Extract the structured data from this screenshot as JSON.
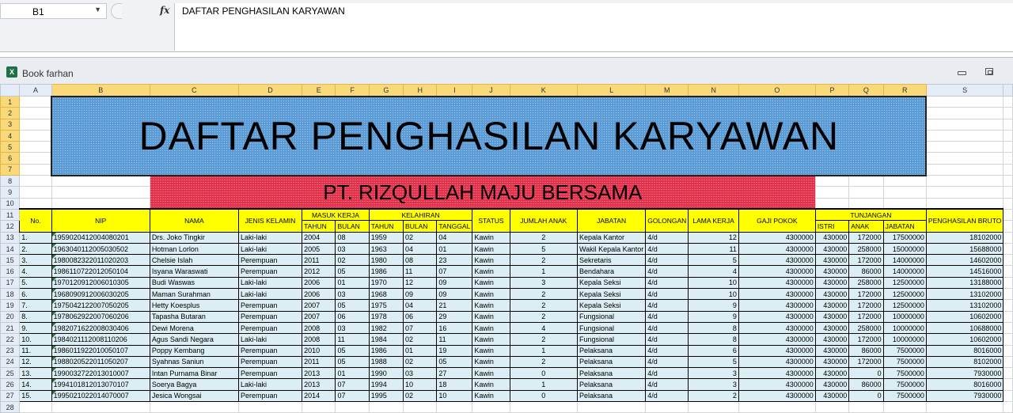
{
  "formula_bar": {
    "name_box": "B1",
    "fx_label": "fx",
    "formula": "DAFTAR PENGHASILAN KARYAWAN"
  },
  "workbook": {
    "title": "Book farhan",
    "icon": "excel-icon"
  },
  "columns": [
    "A",
    "B",
    "C",
    "D",
    "E",
    "F",
    "G",
    "H",
    "I",
    "J",
    "K",
    "L",
    "M",
    "N",
    "O",
    "P",
    "Q",
    "R",
    "S"
  ],
  "row_numbers": [
    "1",
    "2",
    "3",
    "4",
    "5",
    "6",
    "7",
    "8",
    "9",
    "10",
    "11",
    "12",
    "13",
    "14",
    "15",
    "16",
    "17",
    "18",
    "19",
    "20",
    "21",
    "22",
    "23",
    "24",
    "25",
    "26",
    "27",
    "28"
  ],
  "sheet": {
    "title": "DAFTAR PENGHASILAN KARYAWAN",
    "subtitle": "PT. RIZQULLAH MAJU BERSAMA",
    "headers": {
      "no": "No.",
      "nip": "NIP",
      "nama": "NAMA",
      "jenis_kelamin": "JENIS KELAMIN",
      "masuk_kerja": "MASUK KERJA",
      "mk_tahun": "TAHUN",
      "mk_bulan": "BULAN",
      "kelahiran": "KELAHIRAN",
      "kl_tahun": "TAHUN",
      "kl_bulan": "BULAN",
      "kl_tanggal": "TANGGAL",
      "status": "STATUS",
      "jumlah_anak": "JUMLAH ANAK",
      "jabatan": "JABATAN",
      "golongan": "GOLONGAN",
      "lama_kerja": "LAMA KERJA",
      "gaji_pokok": "GAJI POKOK",
      "tunjangan": "TUNJANGAN",
      "istri": "ISTRI",
      "anak": "ANAK",
      "tj_jabatan": "JABATAN",
      "bruto": "PENGHASILAN BRUTO"
    },
    "rows": [
      [
        "1.",
        "1959020412004080201",
        "Drs. Joko Tingkir",
        "Laki-laki",
        "2004",
        "08",
        "1959",
        "02",
        "04",
        "Kawin",
        "2",
        "Kepala Kantor",
        "4/d",
        "12",
        "4300000",
        "430000",
        "172000",
        "17500000",
        "18102000"
      ],
      [
        "2.",
        "1963040112005030502",
        "Hotman Lorlon",
        "Laki-laki",
        "2005",
        "03",
        "1963",
        "04",
        "01",
        "Kawin",
        "5",
        "Wakil Kepala Kantor",
        "4/d",
        "11",
        "4300000",
        "430000",
        "258000",
        "15000000",
        "15688000"
      ],
      [
        "3.",
        "1980082322011020203",
        "Chelsie Islah",
        "Perempuan",
        "2011",
        "02",
        "1980",
        "08",
        "23",
        "Kawin",
        "2",
        "Sekretaris",
        "4/d",
        "5",
        "4300000",
        "430000",
        "172000",
        "14000000",
        "14602000"
      ],
      [
        "4.",
        "1986110722012050104",
        "Isyana Waraswati",
        "Perempuan",
        "2012",
        "05",
        "1986",
        "11",
        "07",
        "Kawin",
        "1",
        "Bendahara",
        "4/d",
        "4",
        "4300000",
        "430000",
        "86000",
        "14000000",
        "14516000"
      ],
      [
        "5.",
        "1970120912006010305",
        "Budi Waswas",
        "Laki-laki",
        "2006",
        "01",
        "1970",
        "12",
        "09",
        "Kawin",
        "3",
        "Kepala Seksi",
        "4/d",
        "10",
        "4300000",
        "430000",
        "258000",
        "12500000",
        "13188000"
      ],
      [
        "6.",
        "1968090912006030205",
        "Maman Surahman",
        "Laki-laki",
        "2006",
        "03",
        "1968",
        "09",
        "09",
        "Kawin",
        "2",
        "Kepala Seksi",
        "4/d",
        "10",
        "4300000",
        "430000",
        "172000",
        "12500000",
        "13102000"
      ],
      [
        "7.",
        "1975042122007050205",
        "Hetty Koesplus",
        "Perempuan",
        "2007",
        "05",
        "1975",
        "04",
        "21",
        "Kawin",
        "2",
        "Kepala Seksi",
        "4/d",
        "9",
        "4300000",
        "430000",
        "172000",
        "12500000",
        "13102000"
      ],
      [
        "8.",
        "1978062922007060206",
        "Tapasha Butaran",
        "Perempuan",
        "2007",
        "06",
        "1978",
        "06",
        "29",
        "Kawin",
        "2",
        "Fungsional",
        "4/d",
        "9",
        "4300000",
        "430000",
        "172000",
        "10000000",
        "10602000"
      ],
      [
        "9.",
        "1982071622008030406",
        "Dewi Morena",
        "Perempuan",
        "2008",
        "03",
        "1982",
        "07",
        "16",
        "Kawin",
        "4",
        "Fungsional",
        "4/d",
        "8",
        "4300000",
        "430000",
        "258000",
        "10000000",
        "10688000"
      ],
      [
        "10.",
        "1984021112008110206",
        "Agus Sandi Negara",
        "Laki-laki",
        "2008",
        "11",
        "1984",
        "02",
        "11",
        "Kawin",
        "2",
        "Fungsional",
        "4/d",
        "8",
        "4300000",
        "430000",
        "172000",
        "10000000",
        "10602000"
      ],
      [
        "11.",
        "1986011922010050107",
        "Poppy Kembang",
        "Perempuan",
        "2010",
        "05",
        "1986",
        "01",
        "19",
        "Kawin",
        "1",
        "Pelaksana",
        "4/d",
        "6",
        "4300000",
        "430000",
        "86000",
        "7500000",
        "8016000"
      ],
      [
        "12.",
        "1988020522011050207",
        "Syahnas Saniun",
        "Perempuan",
        "2011",
        "05",
        "1988",
        "02",
        "05",
        "Kawin",
        "2",
        "Pelaksana",
        "4/d",
        "5",
        "4300000",
        "430000",
        "172000",
        "7500000",
        "8102000"
      ],
      [
        "13.",
        "1990032722013010007",
        "Intan Purnama Binar",
        "Perempuan",
        "2013",
        "01",
        "1990",
        "03",
        "27",
        "Kawin",
        "0",
        "Pelaksana",
        "4/d",
        "3",
        "4300000",
        "430000",
        "0",
        "7500000",
        "7930000"
      ],
      [
        "14.",
        "1994101812013070107",
        "Soerya Bagya",
        "Laki-laki",
        "2013",
        "07",
        "1994",
        "10",
        "18",
        "Kawin",
        "1",
        "Pelaksana",
        "4/d",
        "3",
        "4300000",
        "430000",
        "86000",
        "7500000",
        "8016000"
      ],
      [
        "15.",
        "1995021022014070007",
        "Jesica Wongsai",
        "Perempuan",
        "2014",
        "07",
        "1995",
        "02",
        "10",
        "Kawin",
        "0",
        "Pelaksana",
        "4/d",
        "2",
        "4300000",
        "430000",
        "0",
        "7500000",
        "7930000"
      ]
    ]
  },
  "colors": {
    "title_fill": "#5b9bd5",
    "subtitle_fill": "#e0304a",
    "header_fill": "#ffff00",
    "data_fill": "#daeef3"
  }
}
